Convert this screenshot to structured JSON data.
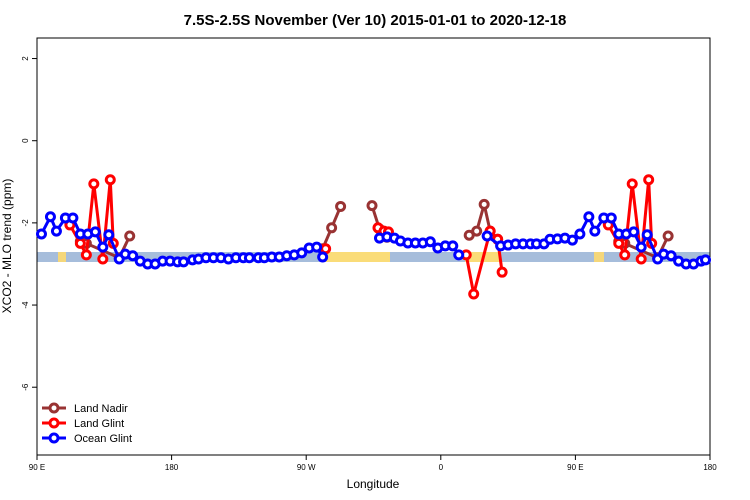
{
  "chart_data": {
    "type": "line",
    "title": "7.5S-2.5S November (Ver 10)   2015-01-01 to 2020-12-18",
    "x_label": "Longitude",
    "y_label": "XCO2 - MLO trend (ppm)",
    "xlim": [
      90,
      540
    ],
    "ylim": [
      -7.65,
      2.5
    ],
    "xticks": [
      {
        "value": 90,
        "label": "90 E"
      },
      180,
      {
        "value": 270,
        "label": "90 W"
      },
      {
        "value": 360,
        "label": "0"
      },
      {
        "value": 450,
        "label": "90 E"
      },
      {
        "value": 540,
        "label": "180"
      }
    ],
    "yticks": [
      2,
      0,
      -2,
      -4,
      -6
    ],
    "legend": "bottom-left",
    "series": [
      {
        "name": "Land Nadir",
        "color": "#993333",
        "x": [
          119,
          123,
          145,
          152,
          200,
          281,
          287,
          293,
          303,
          314,
          319,
          324,
          350,
          379,
          384,
          389,
          393,
          398,
          420,
          479,
          483,
          505,
          512
        ],
        "values": [
          -2.45,
          -2.5,
          -2.85,
          -2.32,
          null,
          -2.63,
          -2.12,
          -1.6,
          null,
          -1.58,
          -2.15,
          -2.35,
          null,
          -2.3,
          -2.2,
          -1.55,
          -2.2,
          -2.4,
          null,
          -2.45,
          -2.5,
          -2.85,
          -2.32
        ]
      },
      {
        "name": "Land Glint",
        "color": "#ff0000",
        "x": [
          112,
          119,
          123,
          128,
          134,
          139,
          141,
          200,
          283,
          300,
          318,
          322,
          325,
          350,
          377,
          382,
          393,
          398,
          401,
          420,
          472,
          479,
          483,
          488,
          494,
          499,
          501
        ],
        "values": [
          -2.05,
          -2.5,
          -2.78,
          -1.05,
          -2.88,
          -0.95,
          -2.5,
          null,
          -2.63,
          null,
          -2.12,
          -2.2,
          -2.22,
          null,
          -2.78,
          -3.73,
          -2.2,
          -2.4,
          -3.2,
          null,
          -2.05,
          -2.5,
          -2.78,
          -1.05,
          -2.88,
          -0.95,
          -2.5
        ]
      },
      {
        "name": "Ocean Glint",
        "color": "#0000ff",
        "x": [
          93,
          99,
          103,
          109,
          114,
          119,
          124,
          129,
          134,
          138,
          145,
          149,
          154,
          159,
          164,
          169,
          174,
          179,
          184,
          188,
          194,
          198,
          203,
          208,
          213,
          218,
          223,
          228,
          232,
          238,
          242,
          247,
          252,
          257,
          262,
          267,
          272,
          277,
          281,
          300,
          319,
          324,
          329,
          333,
          338,
          343,
          348,
          353,
          358,
          363,
          368,
          372,
          381,
          391,
          400,
          405,
          410,
          415,
          420,
          424,
          429,
          433,
          438,
          443,
          448,
          453,
          459,
          463,
          469,
          474,
          479,
          484,
          489,
          494,
          498,
          505,
          509,
          514,
          519,
          524,
          529,
          534,
          537
        ],
        "values": [
          -2.27,
          -1.85,
          -2.2,
          -1.88,
          -1.88,
          -2.27,
          -2.27,
          -2.22,
          -2.59,
          -2.29,
          -2.88,
          -2.76,
          -2.8,
          -2.93,
          -3.0,
          -3.0,
          -2.93,
          -2.93,
          -2.95,
          -2.95,
          -2.9,
          -2.88,
          -2.85,
          -2.85,
          -2.85,
          -2.88,
          -2.85,
          -2.85,
          -2.85,
          -2.85,
          -2.85,
          -2.83,
          -2.83,
          -2.8,
          -2.78,
          -2.73,
          -2.61,
          -2.59,
          -2.83,
          null,
          -2.37,
          -2.34,
          -2.37,
          -2.44,
          -2.49,
          -2.49,
          -2.49,
          -2.46,
          -2.61,
          -2.56,
          -2.56,
          -2.78,
          null,
          -2.32,
          -2.56,
          -2.54,
          -2.51,
          -2.51,
          -2.51,
          -2.51,
          -2.51,
          -2.4,
          -2.39,
          -2.37,
          -2.42,
          -2.27,
          -1.85,
          -2.2,
          -1.88,
          -1.88,
          -2.27,
          -2.27,
          -2.22,
          -2.59,
          -2.29,
          -2.88,
          -2.76,
          -2.8,
          -2.93,
          -3.0,
          -3.0,
          -2.93,
          -2.9
        ]
      }
    ]
  }
}
